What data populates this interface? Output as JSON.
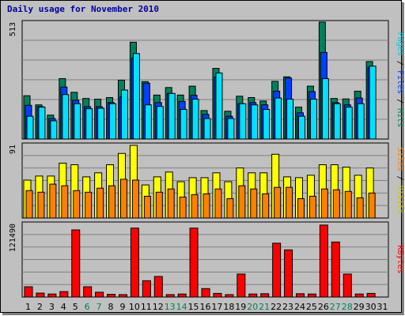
{
  "window": {
    "title": "Daily usage for November 2010"
  },
  "colors": {
    "hits": "#00805c",
    "files": "#0040ff",
    "pages": "#00e0ff",
    "visits": "#ffff00",
    "sites": "#ff8000",
    "kbytes": "#ff0000",
    "background": "#c0c0c0",
    "weekend_tick": "#00805c",
    "weekday_tick": "#000000"
  },
  "legend": {
    "top": [
      {
        "text": "Pages",
        "color": "#00c8e0"
      },
      {
        "text": "Files",
        "color": "#0040ff"
      },
      {
        "text": "Hits",
        "color": "#00805c"
      }
    ],
    "middle": [
      {
        "text": "Sites",
        "color": "#ff8000"
      },
      {
        "text": "Visits",
        "color": "#c8c800"
      }
    ],
    "bottom": [
      {
        "text": "KBytes",
        "color": "#ff0000"
      }
    ],
    "separator": " / "
  },
  "chart_data": [
    {
      "type": "bar",
      "panel": "top",
      "title": "Daily usage for November 2010",
      "ymax_label": "513",
      "ylim": [
        0,
        513
      ],
      "categories": [
        "1",
        "2",
        "3",
        "4",
        "5",
        "6",
        "7",
        "8",
        "9",
        "10",
        "11",
        "12",
        "13",
        "14",
        "15",
        "16",
        "17",
        "18",
        "19",
        "20",
        "21",
        "22",
        "23",
        "24",
        "25",
        "26",
        "27",
        "28",
        "29",
        "30",
        "31"
      ],
      "weekend_days": [
        "6",
        "7",
        "13",
        "14",
        "20",
        "21",
        "27",
        "28"
      ],
      "series": [
        {
          "name": "Hits",
          "values": [
            190,
            150,
            105,
            265,
            205,
            178,
            175,
            182,
            258,
            425,
            252,
            193,
            226,
            193,
            232,
            125,
            310,
            122,
            188,
            182,
            167,
            253,
            273,
            140,
            232,
            513,
            178,
            176,
            210,
            340,
            0
          ]
        },
        {
          "name": "Files",
          "values": [
            148,
            142,
            90,
            228,
            170,
            142,
            142,
            160,
            185,
            355,
            245,
            160,
            200,
            165,
            192,
            108,
            272,
            100,
            155,
            160,
            150,
            210,
            268,
            115,
            208,
            380,
            160,
            150,
            180,
            315,
            0
          ]
        },
        {
          "name": "Pages",
          "values": [
            100,
            140,
            80,
            195,
            155,
            133,
            135,
            155,
            215,
            375,
            150,
            143,
            200,
            130,
            175,
            90,
            290,
            90,
            155,
            150,
            130,
            180,
            175,
            100,
            175,
            265,
            155,
            140,
            155,
            320,
            0
          ]
        }
      ]
    },
    {
      "type": "bar",
      "panel": "middle",
      "ymax_label": "91",
      "ylim": [
        0,
        91
      ],
      "categories": [
        "1",
        "2",
        "3",
        "4",
        "5",
        "6",
        "7",
        "8",
        "9",
        "10",
        "11",
        "12",
        "13",
        "14",
        "15",
        "16",
        "17",
        "18",
        "19",
        "20",
        "21",
        "22",
        "23",
        "24",
        "25",
        "26",
        "27",
        "28",
        "29",
        "30",
        "31"
      ],
      "series": [
        {
          "name": "Visits",
          "values": [
            47,
            52,
            52,
            68,
            66,
            51,
            56,
            66,
            80,
            90,
            41,
            51,
            57,
            45,
            50,
            50,
            56,
            45,
            62,
            56,
            56,
            79,
            51,
            50,
            53,
            66,
            66,
            63,
            53,
            62,
            0
          ]
        },
        {
          "name": "Sites",
          "values": [
            34,
            32,
            42,
            40,
            34,
            32,
            37,
            40,
            48,
            47,
            27,
            32,
            36,
            26,
            29,
            30,
            36,
            24,
            40,
            36,
            30,
            38,
            38,
            24,
            27,
            36,
            35,
            33,
            25,
            31,
            0
          ]
        }
      ]
    },
    {
      "type": "bar",
      "panel": "bottom",
      "ymax_label": "121490",
      "ylim": [
        0,
        121490
      ],
      "categories": [
        "1",
        "2",
        "3",
        "4",
        "5",
        "6",
        "7",
        "8",
        "9",
        "10",
        "11",
        "12",
        "13",
        "14",
        "15",
        "16",
        "17",
        "18",
        "19",
        "20",
        "21",
        "22",
        "23",
        "24",
        "25",
        "26",
        "27",
        "28",
        "29",
        "30",
        "31"
      ],
      "series": [
        {
          "name": "KBytes",
          "values": [
            17000,
            6500,
            5000,
            9000,
            111000,
            17000,
            8000,
            4500,
            4000,
            114000,
            27000,
            34000,
            4000,
            5000,
            114000,
            14000,
            6000,
            4000,
            38000,
            5000,
            5500,
            89000,
            78000,
            5500,
            5000,
            119000,
            91000,
            38000,
            5000,
            6000,
            0
          ]
        }
      ]
    }
  ]
}
